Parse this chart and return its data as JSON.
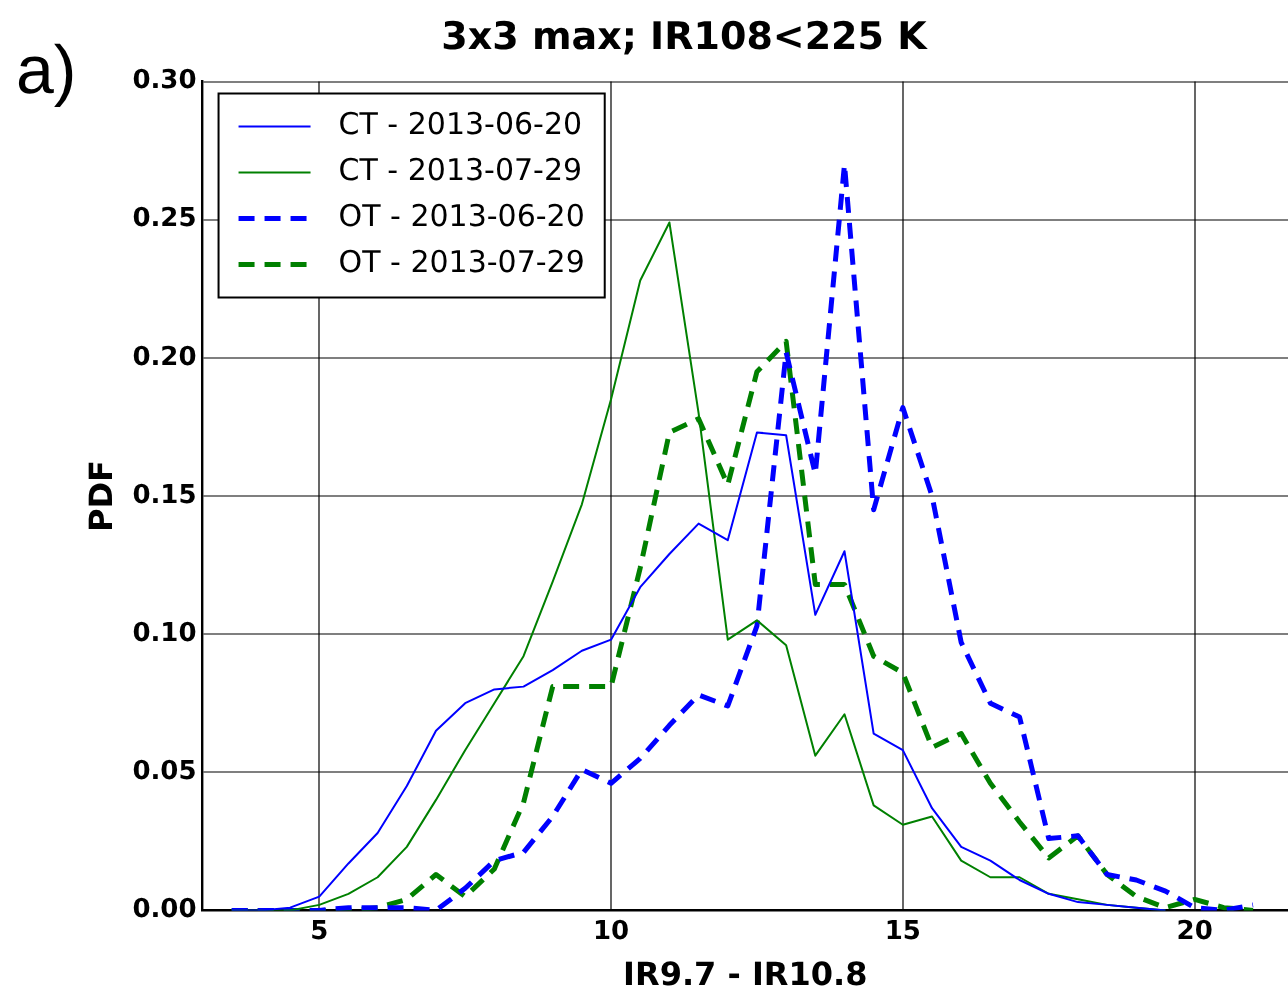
{
  "chart_data": {
    "type": "line",
    "title": "3x3 max; IR108<225 K",
    "xlabel": "IR9.7 - IR10.8",
    "ylabel": "PDF",
    "annotations": [
      "a)"
    ],
    "xlim": [
      3,
      21.6
    ],
    "xticks": [
      5,
      10,
      15,
      20
    ],
    "ylim": [
      0,
      0.3
    ],
    "yticks": [
      {
        "value": 0,
        "label": "0.00"
      },
      {
        "value": 0.05,
        "label": "0.05"
      },
      {
        "value": 0.1,
        "label": "0.10"
      },
      {
        "value": 0.15,
        "label": "0.15"
      },
      {
        "value": 0.2,
        "label": "0.20"
      },
      {
        "value": 0.25,
        "label": "0.25"
      },
      {
        "value": 0.3,
        "label": "0.30"
      }
    ],
    "grid": true,
    "legend": "top left",
    "marker": "none",
    "series": [
      {
        "name": "CT - 2013-06-20",
        "color": "#0000ff",
        "line_style": "solid",
        "x": [
          3.5,
          4,
          4.5,
          5,
          5.5,
          6,
          6.5,
          7,
          7.5,
          8,
          8.5,
          9,
          9.5,
          10,
          10.5,
          11,
          11.5,
          12,
          12.5,
          13,
          13.5,
          14,
          14.5,
          15,
          15.5,
          16,
          16.5,
          17,
          17.5,
          18,
          18.5,
          19,
          19.5
        ],
        "values": [
          0,
          0,
          0.001,
          0.005,
          0.017,
          0.028,
          0.045,
          0.065,
          0.075,
          0.08,
          0.081,
          0.087,
          0.094,
          0.098,
          0.117,
          0.129,
          0.14,
          0.134,
          0.173,
          0.172,
          0.107,
          0.13,
          0.064,
          0.058,
          0.037,
          0.023,
          0.018,
          0.011,
          0.006,
          0.003,
          0.002,
          0.001,
          0
        ]
      },
      {
        "name": "CT - 2013-07-29",
        "color": "#008000",
        "line_style": "solid",
        "x": [
          3.5,
          4,
          4.5,
          5,
          5.5,
          6,
          6.5,
          7,
          7.5,
          8,
          8.5,
          9,
          9.5,
          10,
          10.5,
          11,
          11.5,
          12,
          12.5,
          13,
          13.5,
          14,
          14.5,
          15,
          15.5,
          16,
          16.5,
          17,
          17.5,
          18,
          18.5,
          19,
          19.5
        ],
        "values": [
          0,
          0,
          0,
          0.002,
          0.006,
          0.012,
          0.023,
          0.04,
          0.058,
          0.075,
          0.092,
          0.119,
          0.147,
          0.185,
          0.228,
          0.249,
          0.18,
          0.098,
          0.105,
          0.096,
          0.056,
          0.071,
          0.038,
          0.031,
          0.034,
          0.018,
          0.012,
          0.012,
          0.006,
          0.004,
          0.002,
          0.001,
          0
        ]
      },
      {
        "name": "OT - 2013-06-20",
        "color": "#0000ff",
        "line_style": "dashed",
        "x": [
          3.5,
          4,
          4.5,
          5,
          5.5,
          6,
          6.5,
          7,
          7.5,
          8,
          8.5,
          9,
          9.5,
          10,
          10.5,
          11,
          11.5,
          12,
          12.5,
          13,
          13.5,
          14,
          14.5,
          15,
          15.5,
          16,
          16.5,
          17,
          17.5,
          18,
          18.5,
          19,
          19.5,
          20,
          20.5,
          21
        ],
        "values": [
          0,
          0,
          0,
          0,
          0.001,
          0.001,
          0.001,
          0,
          0.008,
          0.018,
          0.021,
          0.034,
          0.051,
          0.046,
          0.055,
          0.067,
          0.078,
          0.074,
          0.103,
          0.202,
          0.158,
          0.27,
          0.145,
          0.182,
          0.15,
          0.097,
          0.075,
          0.07,
          0.026,
          0.027,
          0.013,
          0.011,
          0.007,
          0.001,
          0,
          0.002
        ]
      },
      {
        "name": "OT - 2013-07-29",
        "color": "#008000",
        "line_style": "dashed",
        "x": [
          3.5,
          4,
          4.5,
          5,
          5.5,
          6,
          6.5,
          7,
          7.5,
          8,
          8.5,
          9,
          9.5,
          10,
          10.5,
          11,
          11.5,
          12,
          12.5,
          13,
          13.5,
          14,
          14.5,
          15,
          15.5,
          16,
          16.5,
          17,
          17.5,
          18,
          18.5,
          19,
          19.5,
          20,
          20.5,
          21
        ],
        "values": [
          0,
          0,
          0,
          0,
          0,
          0.001,
          0.004,
          0.013,
          0.005,
          0.015,
          0.039,
          0.081,
          0.081,
          0.081,
          0.124,
          0.173,
          0.178,
          0.154,
          0.195,
          0.206,
          0.118,
          0.118,
          0.092,
          0.086,
          0.059,
          0.064,
          0.046,
          0.032,
          0.019,
          0.027,
          0.013,
          0.005,
          0.001,
          0.004,
          0.001,
          0
        ]
      }
    ]
  }
}
